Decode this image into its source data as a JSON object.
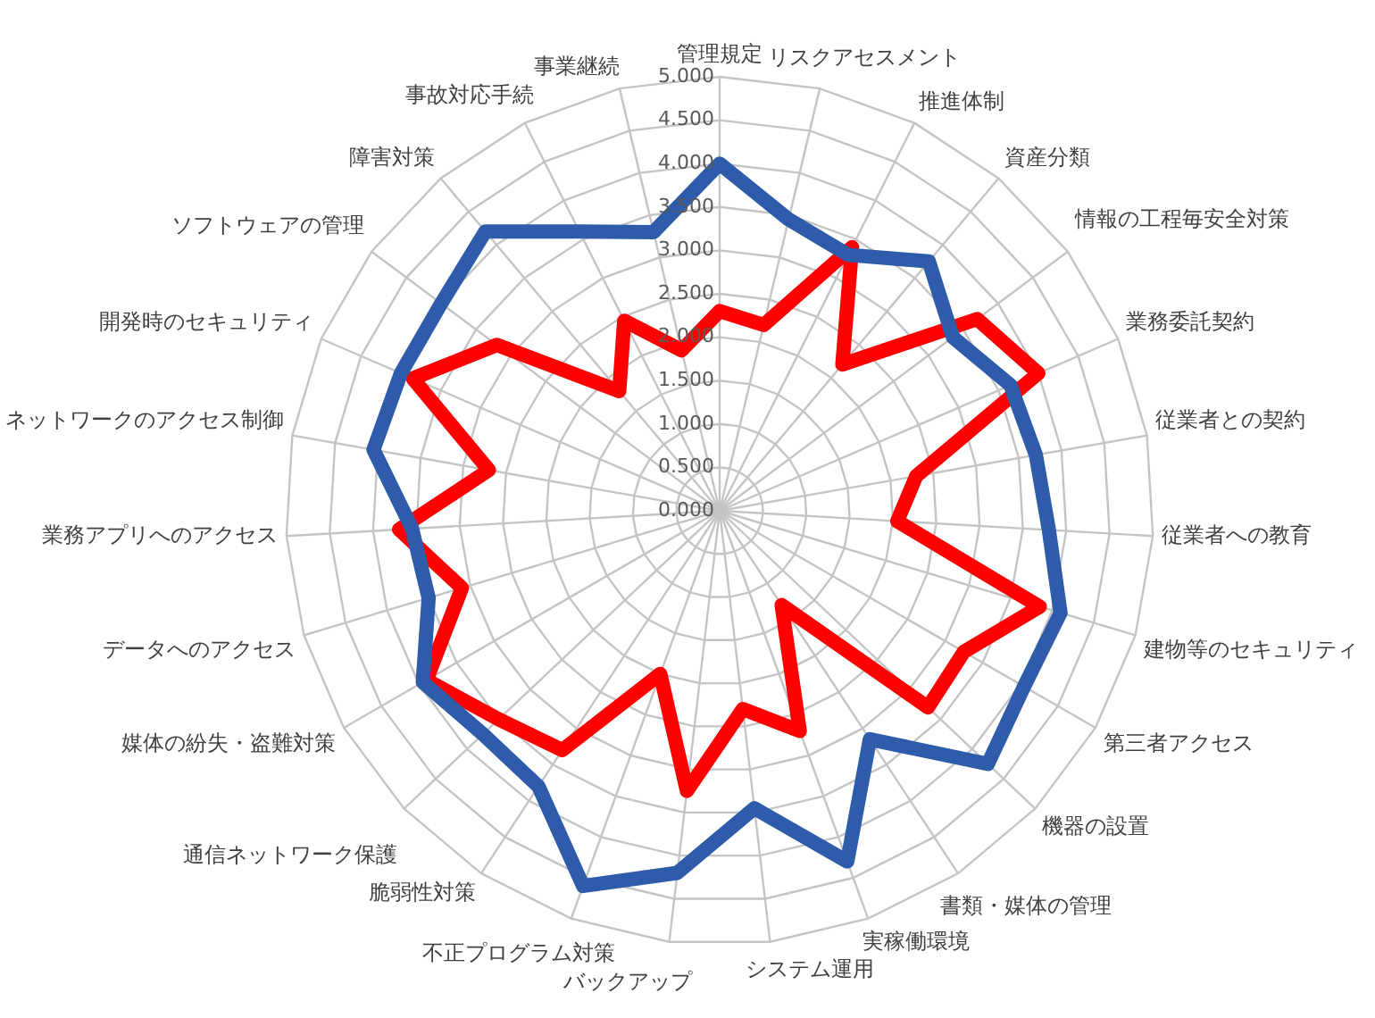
{
  "chart_data": {
    "type": "radar",
    "categories": [
      "管理規定",
      "リスクアセスメント",
      "推進体制",
      "資産分類",
      "情報の工程毎安全対策",
      "業務委託契約",
      "従業者との契約",
      "従業者への教育",
      "建物等のセキュリティ",
      "第三者アクセス",
      "機器の設置",
      "書類・媒体の管理",
      "実稼働環境",
      "システム運用",
      "バックアップ",
      "不正プログラム対策",
      "脆弱性対策",
      "通信ネットワーク保護",
      "媒体の紛失・盗難対策",
      "データへのアクセス",
      "業務アプリへのアクセス",
      "ネットワークのアクセス制御",
      "開発時のセキュリティ",
      "ソフトウェアの管理",
      "障害対策",
      "事故対応手続",
      "事業継続"
    ],
    "series": [
      {
        "color": "#2e5caa",
        "values": [
          4.0,
          3.45,
          3.3,
          3.75,
          3.35,
          3.65,
          3.7,
          3.8,
          4.1,
          4.05,
          4.25,
          3.15,
          4.3,
          3.45,
          4.2,
          4.6,
          3.8,
          3.75,
          3.95,
          3.5,
          3.55,
          4.05,
          4.0,
          4.0,
          4.2,
          3.6,
          3.3
        ]
      },
      {
        "color": "#ff0000",
        "values": [
          2.3,
          2.2,
          3.4,
          2.2,
          3.7,
          4.0,
          2.3,
          2.05,
          3.85,
          3.25,
          3.3,
          1.3,
          2.7,
          2.3,
          3.25,
          2.0,
          3.3,
          3.5,
          3.9,
          3.1,
          3.7,
          2.7,
          3.85,
          3.2,
          1.8,
          2.45,
          1.9
        ]
      }
    ],
    "ylim": [
      0,
      5
    ],
    "yticks": [
      {
        "value": 0,
        "label": "0.000"
      },
      {
        "value": 0.5,
        "label": "0.500"
      },
      {
        "value": 1,
        "label": "1.000"
      },
      {
        "value": 1.5,
        "label": "1.500"
      },
      {
        "value": 2,
        "label": "2.000"
      },
      {
        "value": 2.5,
        "label": "2.500"
      },
      {
        "value": 3,
        "label": "3.000"
      },
      {
        "value": 3.5,
        "label": "3.500"
      },
      {
        "value": 4,
        "label": "4.000"
      },
      {
        "value": 4.5,
        "label": "4.500"
      },
      {
        "value": 5,
        "label": "5.000"
      }
    ],
    "grid": true
  }
}
